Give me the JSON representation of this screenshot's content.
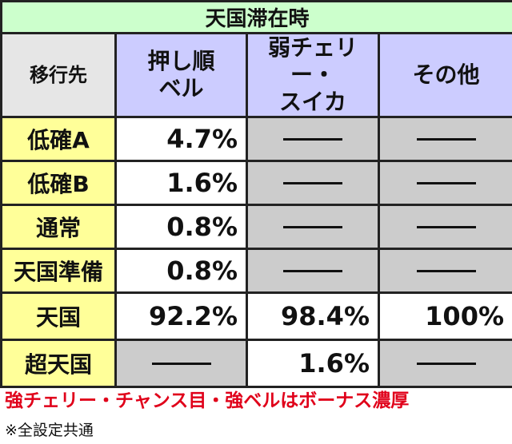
{
  "title": "天国滞在時",
  "table": {
    "header": [
      "移行先",
      "押し順\nベル",
      "弱チェリー・\nスイカ",
      "その他"
    ],
    "rows": [
      {
        "label": "低確A",
        "cells": [
          "4.7%",
          null,
          null
        ]
      },
      {
        "label": "低確B",
        "cells": [
          "1.6%",
          null,
          null
        ]
      },
      {
        "label": "通常",
        "cells": [
          "0.8%",
          null,
          null
        ]
      },
      {
        "label": "天国準備",
        "cells": [
          "0.8%",
          null,
          null
        ]
      },
      {
        "label": "天国",
        "cells": [
          "92.2%",
          "98.4%",
          "100%"
        ]
      },
      {
        "label": "超天国",
        "cells": [
          null,
          "1.6%",
          null
        ]
      }
    ]
  },
  "notes": [
    "強チェリー・チャンス目・強ベルはボーナス濃厚",
    "※全設定共通"
  ]
}
